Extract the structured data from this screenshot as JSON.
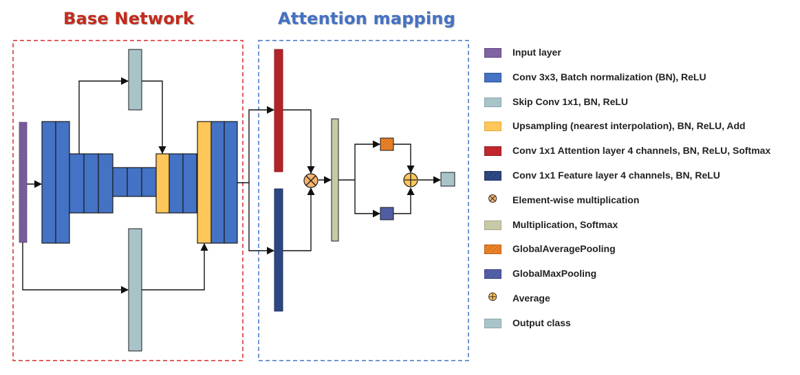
{
  "titles": {
    "base": "Base Network",
    "attention": "Attention mapping"
  },
  "colors": {
    "input": "#8064a2",
    "conv": "#4472c4",
    "skip": "#a9c4c9",
    "upsample": "#ffc65a",
    "attention": "#c1272d",
    "feature": "#2f4f8f",
    "multiplication": "#c8c9a6",
    "gap": "#f28a30",
    "gmp": "#5a66b0",
    "output": "#a9c4c9",
    "base_border": "#d62828",
    "attn_border": "#4472c4"
  },
  "legend": [
    {
      "label": "Input layer",
      "swatch": "input-swatch-icon"
    },
    {
      "label": "Conv 3x3,  Batch normalization  (BN), ReLU",
      "swatch": "conv-swatch-icon"
    },
    {
      "label": "Skip Conv 1x1, BN, ReLU",
      "swatch": "skip-swatch-icon"
    },
    {
      "label": "Upsampling (nearest interpolation), BN, ReLU, Add",
      "swatch": "upsample-swatch-icon"
    },
    {
      "label": "Conv 1x1 Attention layer 4 channels, BN, ReLU, Softmax",
      "swatch": "attention-swatch-icon"
    },
    {
      "label": "Conv 1x1 Feature layer 4 channels, BN, ReLU",
      "swatch": "feature-swatch-icon"
    },
    {
      "label": "Element-wise multiplication",
      "swatch": "multiply-circle-icon"
    },
    {
      "label": "Multiplication, Softmax",
      "swatch": "softmax-swatch-icon"
    },
    {
      "label": "GlobalAveragePooling",
      "swatch": "gap-swatch-icon"
    },
    {
      "label": "GlobalMaxPooling",
      "swatch": "gmp-swatch-icon"
    },
    {
      "label": "Average",
      "swatch": "average-circle-icon"
    },
    {
      "label": "Output class",
      "swatch": "output-swatch-icon"
    }
  ]
}
